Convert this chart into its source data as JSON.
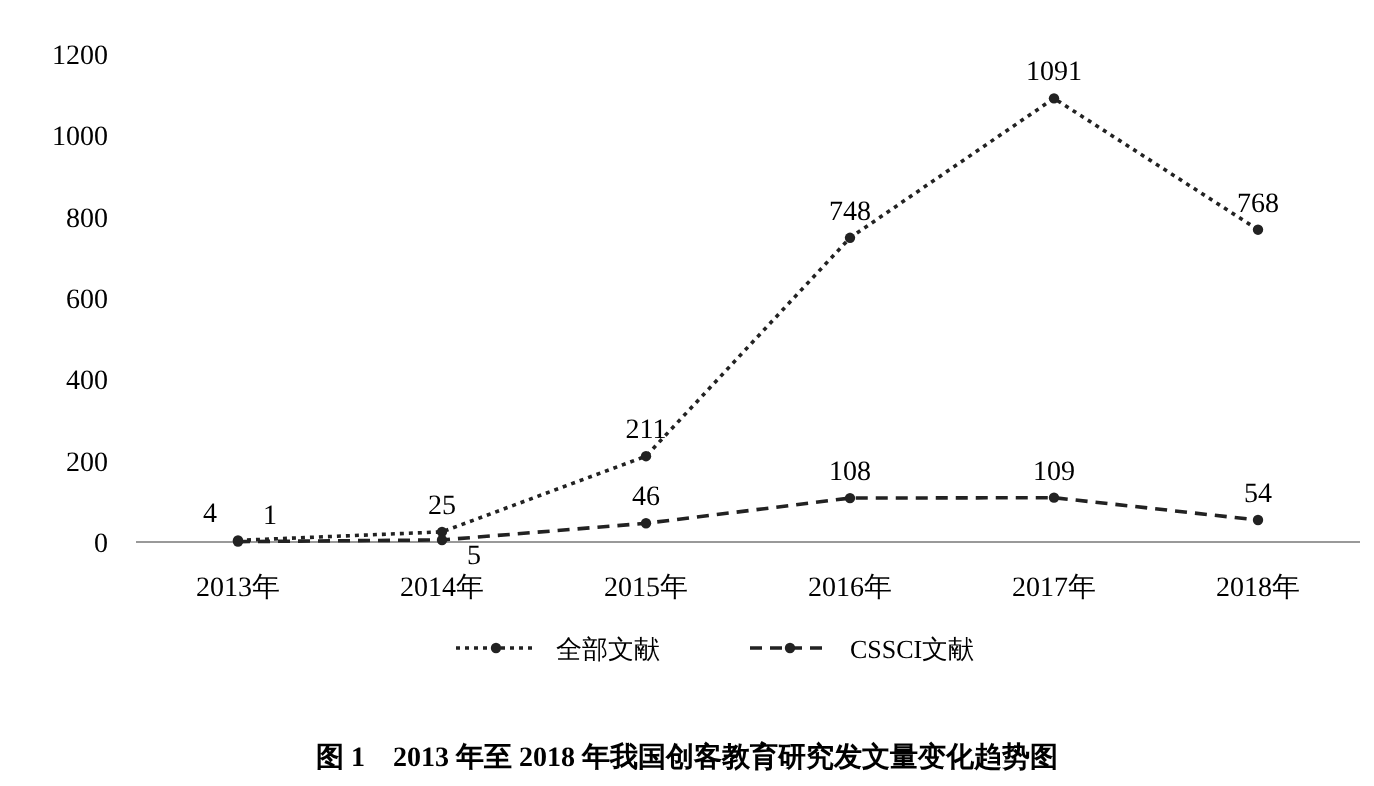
{
  "chart_data": {
    "type": "line",
    "categories": [
      "2013年",
      "2014年",
      "2015年",
      "2016年",
      "2017年",
      "2018年"
    ],
    "series": [
      {
        "name": "全部文献",
        "color": "#222222",
        "line_style": "dotted",
        "values": [
          4,
          25,
          211,
          748,
          1091,
          768
        ]
      },
      {
        "name": "CSSCI文献",
        "color": "#222222",
        "line_style": "dashed",
        "values": [
          1,
          5,
          46,
          108,
          109,
          54
        ]
      }
    ],
    "ylim": [
      0,
      1200
    ],
    "yticks": [
      0,
      200,
      400,
      600,
      800,
      1000,
      1200
    ],
    "marker": "circle",
    "data_labels": true,
    "legend": "bottom",
    "grid": false,
    "annotations": [
      "图 1　2013 年至 2018 年我国创客教育研究发文量变化趋势图"
    ]
  }
}
